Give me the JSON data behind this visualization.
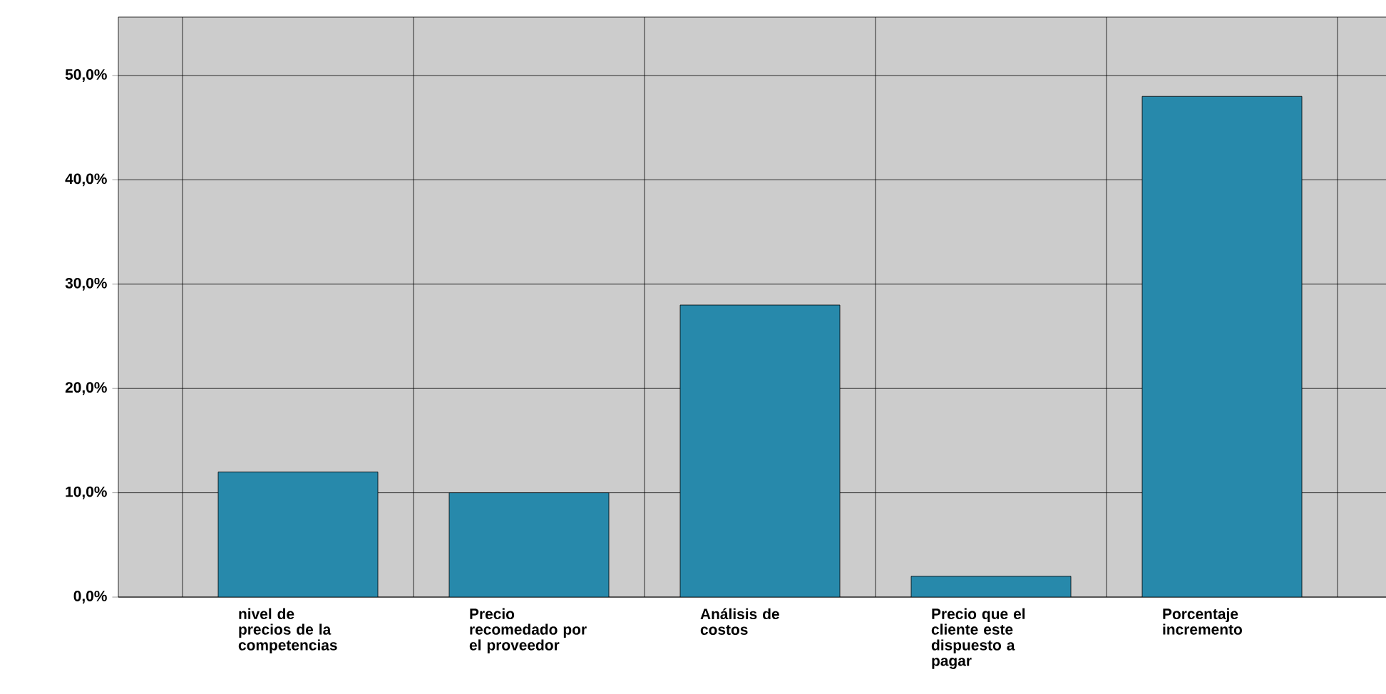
{
  "chart_data": {
    "type": "bar",
    "categories": [
      "nivel de precios de la competencias",
      "Precio recomedado por el proveedor",
      "Análisis de costos",
      "Precio que el cliente este dispuesto a pagar",
      "Porcentaje incremento"
    ],
    "values": [
      12,
      10,
      28,
      2,
      48
    ],
    "color": "#2789ab",
    "ylim": [
      0,
      55.6
    ],
    "yticks": [
      {
        "value": 0,
        "label": "0,0%"
      },
      {
        "value": 10,
        "label": "10,0%"
      },
      {
        "value": 20,
        "label": "20,0%"
      },
      {
        "value": 30,
        "label": "30,0%"
      },
      {
        "value": 40,
        "label": "40,0%"
      },
      {
        "value": 50,
        "label": "50,0%"
      }
    ],
    "grid": true
  }
}
